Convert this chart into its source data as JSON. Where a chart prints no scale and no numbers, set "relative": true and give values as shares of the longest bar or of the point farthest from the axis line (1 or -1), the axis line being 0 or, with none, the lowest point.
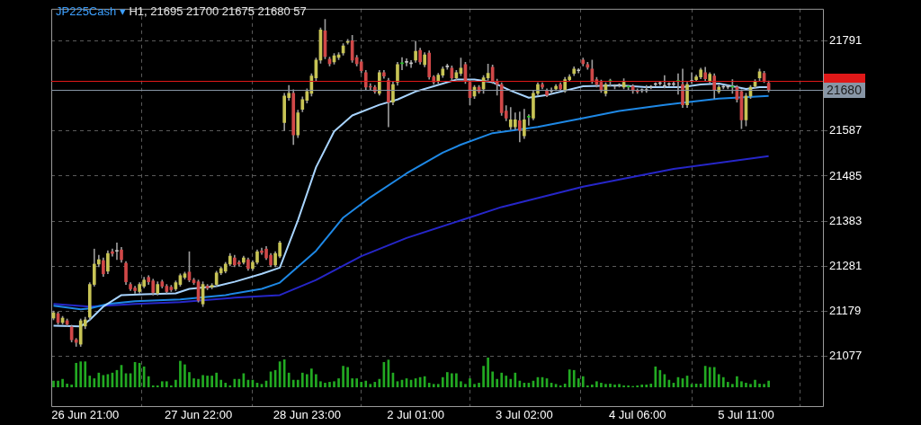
{
  "chart_data": [
    {
      "type": "candlestick",
      "title": "JP225Cash ▾",
      "subtitle": "H1, 21695 21700 21675 21680 57",
      "categories": [
        null,
        null,
        null,
        null,
        null,
        null,
        null,
        "26 Jun 21:00",
        null,
        null,
        null,
        null,
        null,
        null,
        null,
        null,
        null,
        null,
        null,
        null,
        null,
        null,
        null,
        null,
        null,
        null,
        null,
        null,
        null,
        null,
        null,
        null,
        "27 Jun 22:00",
        null,
        null,
        null,
        null,
        null,
        null,
        null,
        null,
        null,
        null,
        null,
        null,
        null,
        null,
        null,
        null,
        null,
        null,
        null,
        null,
        null,
        null,
        null,
        "28 Jun 23:00",
        null,
        null,
        null,
        null,
        null,
        null,
        null,
        null,
        null,
        null,
        null,
        null,
        null,
        null,
        null,
        null,
        null,
        null,
        null,
        null,
        null,
        null,
        null,
        "2 Jul 01:00",
        null,
        null,
        null,
        null,
        null,
        null,
        null,
        null,
        null,
        null,
        null,
        null,
        null,
        null,
        null,
        null,
        null,
        null,
        null,
        null,
        null,
        null,
        null,
        "3 Jul 02:00",
        null,
        null,
        null,
        null,
        null,
        null,
        null,
        null,
        null,
        null,
        null,
        null,
        null,
        null,
        null,
        null,
        null,
        null,
        null,
        null,
        null,
        null,
        null,
        null,
        "4 Jul 06:00",
        null,
        null,
        null,
        null,
        null,
        null,
        null,
        null,
        null,
        null,
        null,
        null,
        null,
        null,
        null,
        null,
        null,
        null,
        null,
        null,
        null,
        null,
        null,
        "5 Jul 11:00",
        null,
        null,
        null,
        null,
        null
      ],
      "ohlc": [
        [
          21164,
          21180,
          21160,
          21176
        ],
        [
          21174,
          21178,
          21150,
          21154
        ],
        [
          21154,
          21168,
          21150,
          21164
        ],
        [
          21158,
          21162,
          21146,
          21150
        ],
        [
          21144,
          21148,
          21110,
          21115
        ],
        [
          21115,
          21118,
          21100,
          21109
        ],
        [
          21105,
          21162,
          21100,
          21158
        ],
        [
          21146,
          21166,
          21140,
          21160
        ],
        [
          21166,
          21244,
          21160,
          21240
        ],
        [
          21240,
          21320,
          21236,
          21286
        ],
        [
          21286,
          21306,
          21280,
          21296
        ],
        [
          21294,
          21300,
          21258,
          21264
        ],
        [
          21270,
          21316,
          21264,
          21310
        ],
        [
          21314,
          21320,
          21304,
          21310
        ],
        [
          21316,
          21334,
          21296,
          21315
        ],
        [
          21318,
          21324,
          21290,
          21296
        ],
        [
          21288,
          21292,
          21240,
          21246
        ],
        [
          21240,
          21244,
          21226,
          21230
        ],
        [
          21232,
          21236,
          21220,
          21226
        ],
        [
          21224,
          21244,
          21220,
          21240
        ],
        [
          21236,
          21256,
          21232,
          21250
        ],
        [
          21256,
          21260,
          21240,
          21246
        ],
        [
          21248,
          21252,
          21216,
          21222
        ],
        [
          21220,
          21246,
          21216,
          21240
        ],
        [
          21246,
          21250,
          21232,
          21236
        ],
        [
          21236,
          21240,
          21220,
          21224
        ],
        [
          21234,
          21238,
          21224,
          21228
        ],
        [
          21230,
          21248,
          21226,
          21244
        ],
        [
          21240,
          21264,
          21236,
          21260
        ],
        [
          21256,
          21268,
          21252,
          21264
        ],
        [
          21268,
          21314,
          21246,
          21250
        ],
        [
          21250,
          21254,
          21240,
          21244
        ],
        [
          21246,
          21250,
          21200,
          21204
        ],
        [
          21196,
          21246,
          21190,
          21240
        ],
        [
          21236,
          21240,
          21228,
          21232
        ],
        [
          21234,
          21242,
          21230,
          21238
        ],
        [
          21240,
          21270,
          21236,
          21266
        ],
        [
          21266,
          21280,
          21262,
          21276
        ],
        [
          21270,
          21290,
          21266,
          21286
        ],
        [
          21286,
          21310,
          21282,
          21304
        ],
        [
          21300,
          21306,
          21280,
          21284
        ],
        [
          21290,
          21294,
          21282,
          21286
        ],
        [
          21290,
          21304,
          21286,
          21300
        ],
        [
          21296,
          21300,
          21272,
          21276
        ],
        [
          21276,
          21294,
          21272,
          21290
        ],
        [
          21290,
          21318,
          21286,
          21314
        ],
        [
          21316,
          21322,
          21308,
          21312
        ],
        [
          21320,
          21326,
          21296,
          21300
        ],
        [
          21306,
          21310,
          21280,
          21284
        ],
        [
          21284,
          21314,
          21280,
          21310
        ],
        [
          21304,
          21338,
          21300,
          21334
        ],
        [
          21606,
          21672,
          21588,
          21666
        ],
        [
          21662,
          21690,
          21656,
          21672
        ],
        [
          21672,
          21680,
          21556,
          21578
        ],
        [
          21578,
          21634,
          21572,
          21628
        ],
        [
          21636,
          21664,
          21630,
          21658
        ],
        [
          21656,
          21682,
          21650,
          21676
        ],
        [
          21672,
          21716,
          21666,
          21711
        ],
        [
          21707,
          21752,
          21700,
          21747
        ],
        [
          21747,
          21820,
          21740,
          21815
        ],
        [
          21813,
          21839,
          21750,
          21755
        ],
        [
          21749,
          21754,
          21734,
          21739
        ],
        [
          21743,
          21762,
          21738,
          21757
        ],
        [
          21753,
          21764,
          21748,
          21759
        ],
        [
          21763,
          21784,
          21758,
          21779
        ],
        [
          21787,
          21794,
          21783,
          21789
        ],
        [
          21791,
          21803,
          21742,
          21747
        ],
        [
          21753,
          21758,
          21734,
          21739
        ],
        [
          21743,
          21748,
          21718,
          21723
        ],
        [
          21719,
          21724,
          21680,
          21686
        ],
        [
          21688,
          21694,
          21680,
          21686
        ],
        [
          21686,
          21690,
          21672,
          21676
        ],
        [
          21672,
          21724,
          21668,
          21719
        ],
        [
          21719,
          21724,
          21706,
          21711
        ],
        [
          21701,
          21706,
          21596,
          21652
        ],
        [
          21652,
          21698,
          21646,
          21692
        ],
        [
          21697,
          21742,
          21690,
          21737
        ],
        [
          21739,
          21753,
          21725,
          21739
        ],
        [
          21743,
          21750,
          21734,
          21742
        ],
        [
          21739,
          21746,
          21730,
          21740
        ],
        [
          21747,
          21790,
          21742,
          21767
        ],
        [
          21769,
          21774,
          21738,
          21743
        ],
        [
          21737,
          21764,
          21732,
          21759
        ],
        [
          21763,
          21768,
          21704,
          21709
        ],
        [
          21709,
          21712,
          21692,
          21697
        ],
        [
          21699,
          21717,
          21694,
          21713
        ],
        [
          21713,
          21732,
          21708,
          21727
        ],
        [
          21733,
          21738,
          21726,
          21732
        ],
        [
          21729,
          21734,
          21702,
          21707
        ],
        [
          21707,
          21724,
          21702,
          21719
        ],
        [
          21717,
          21752,
          21712,
          21729
        ],
        [
          21737,
          21742,
          21694,
          21699
        ],
        [
          21697,
          21702,
          21646,
          21662
        ],
        [
          21666,
          21690,
          21660,
          21686
        ],
        [
          21686,
          21690,
          21672,
          21676
        ],
        [
          21682,
          21712,
          21672,
          21707
        ],
        [
          21707,
          21738,
          21702,
          21717
        ],
        [
          21731,
          21736,
          21694,
          21699
        ],
        [
          21699,
          21704,
          21668,
          21692
        ],
        [
          21692,
          21696,
          21622,
          21628
        ],
        [
          21632,
          21644,
          21610,
          21616
        ],
        [
          21596,
          21640,
          21590,
          21612
        ],
        [
          21596,
          21628,
          21590,
          21612
        ],
        [
          21610,
          21630,
          21562,
          21588
        ],
        [
          21576,
          21636,
          21570,
          21612
        ],
        [
          21618,
          21624,
          21600,
          21618
        ],
        [
          21616,
          21678,
          21612,
          21672
        ],
        [
          21672,
          21696,
          21668,
          21692
        ],
        [
          21692,
          21696,
          21682,
          21686
        ],
        [
          21678,
          21682,
          21664,
          21668
        ],
        [
          21678,
          21684,
          21672,
          21677
        ],
        [
          21682,
          21692,
          21678,
          21688
        ],
        [
          21692,
          21696,
          21678,
          21682
        ],
        [
          21678,
          21708,
          21674,
          21703
        ],
        [
          21703,
          21714,
          21700,
          21709
        ],
        [
          21717,
          21732,
          21712,
          21727
        ],
        [
          21723,
          21728,
          21718,
          21724
        ],
        [
          21747,
          21752,
          21734,
          21739
        ],
        [
          21737,
          21742,
          21726,
          21731
        ],
        [
          21727,
          21747,
          21694,
          21699
        ],
        [
          21703,
          21708,
          21686,
          21692
        ],
        [
          21697,
          21702,
          21674,
          21678
        ],
        [
          21672,
          21696,
          21666,
          21692
        ],
        [
          21699,
          21704,
          21688,
          21699
        ],
        [
          21688,
          21692,
          21682,
          21689
        ],
        [
          21690,
          21694,
          21686,
          21691
        ],
        [
          21686,
          21705,
          21682,
          21697
        ],
        [
          21686,
          21690,
          21680,
          21686
        ],
        [
          21688,
          21692,
          21672,
          21678
        ],
        [
          21678,
          21682,
          21672,
          21676
        ],
        [
          21678,
          21682,
          21674,
          21679
        ],
        [
          21678,
          21690,
          21674,
          21679
        ],
        [
          21686,
          21690,
          21682,
          21687
        ],
        [
          21692,
          21696,
          21688,
          21693
        ],
        [
          21694,
          21698,
          21690,
          21695
        ],
        [
          21688,
          21712,
          21684,
          21689
        ],
        [
          21692,
          21696,
          21688,
          21693
        ],
        [
          21692,
          21698,
          21688,
          21693
        ],
        [
          21699,
          21716,
          21670,
          21699
        ],
        [
          21692,
          21727,
          21640,
          21646
        ],
        [
          21646,
          21697,
          21640,
          21692
        ],
        [
          21699,
          21719,
          21694,
          21700
        ],
        [
          21703,
          21713,
          21700,
          21709
        ],
        [
          21709,
          21729,
          21705,
          21725
        ],
        [
          21719,
          21731,
          21700,
          21705
        ],
        [
          21699,
          21719,
          21695,
          21715
        ],
        [
          21711,
          21716,
          21660,
          21680
        ],
        [
          21676,
          21690,
          21672,
          21686
        ],
        [
          21686,
          21690,
          21682,
          21687
        ],
        [
          21686,
          21690,
          21682,
          21687
        ],
        [
          21686,
          21703,
          21672,
          21686
        ],
        [
          21686,
          21690,
          21652,
          21658
        ],
        [
          21676,
          21680,
          21592,
          21612
        ],
        [
          21612,
          21672,
          21598,
          21666
        ],
        [
          21666,
          21690,
          21660,
          21686
        ],
        [
          21688,
          21703,
          21684,
          21699
        ],
        [
          21707,
          21727,
          21700,
          21721
        ],
        [
          21717,
          21722,
          21696,
          21701
        ],
        [
          21695,
          21700,
          21675,
          21680
        ]
      ],
      "colors": [
        "#c8c455",
        "#d04848",
        "#c8c455",
        "#d04848",
        "#d04848",
        "#d04848",
        "#c8c455",
        "#c8c455",
        "#c8c455",
        "#c8c455",
        "#c8c455",
        "#d04848",
        "#c8c455",
        "#d04848",
        "#c8c8c8",
        "#d04848",
        "#d04848",
        "#d04848",
        "#d04848",
        "#c8c455",
        "#c8c455",
        "#d04848",
        "#d04848",
        "#c8c455",
        "#d04848",
        "#d04848",
        "#d04848",
        "#c8c455",
        "#c8c455",
        "#c8c455",
        "#d04848",
        "#d04848",
        "#d04848",
        "#c8c455",
        "#d04848",
        "#c8c455",
        "#c8c455",
        "#c8c455",
        "#c8c455",
        "#c8c455",
        "#d04848",
        "#d04848",
        "#c8c455",
        "#d04848",
        "#c8c455",
        "#c8c455",
        "#d04848",
        "#d04848",
        "#d04848",
        "#c8c455",
        "#c8c455",
        "#c8c455",
        "#c8c455",
        "#d04848",
        "#c8c455",
        "#c8c455",
        "#c8c455",
        "#c8c455",
        "#c8c455",
        "#c8c455",
        "#d04848",
        "#d04848",
        "#c8c455",
        "#c8c455",
        "#c8c455",
        "#c8c455",
        "#d04848",
        "#d04848",
        "#d04848",
        "#d04848",
        "#d04848",
        "#d04848",
        "#c8c455",
        "#d04848",
        "#d04848",
        "#c8c455",
        "#c8c455",
        "#1fc41f",
        "#c8c8c8",
        "#c8c8c8",
        "#c8c455",
        "#d04848",
        "#c8c455",
        "#d04848",
        "#d04848",
        "#c8c455",
        "#c8c455",
        "#c8c8c8",
        "#d04848",
        "#c8c455",
        "#c8c455",
        "#d04848",
        "#d04848",
        "#c8c455",
        "#d04848",
        "#c8c455",
        "#c8c455",
        "#d04848",
        "#d04848",
        "#d04848",
        "#d04848",
        "#c8c455",
        "#c8c455",
        "#d04848",
        "#c8c455",
        "#1fc41f",
        "#c8c455",
        "#c8c455",
        "#d04848",
        "#d04848",
        "#c8c8c8",
        "#c8c455",
        "#d04848",
        "#c8c455",
        "#c8c455",
        "#c8c455",
        "#c8c8c8",
        "#d04848",
        "#d04848",
        "#d04848",
        "#d04848",
        "#d04848",
        "#c8c455",
        "#1fc41f",
        "#c8c8c8",
        "#c8c8c8",
        "#c8c455",
        "#1fc41f",
        "#d04848",
        "#d04848",
        "#c8c8c8",
        "#c8c8c8",
        "#c8c8c8",
        "#c8c8c8",
        "#c8c8c8",
        "#c8c8c8",
        "#c8c8c8",
        "#c8c8c8",
        "#1fc41f",
        "#d04848",
        "#c8c455",
        "#c8c8c8",
        "#c8c455",
        "#c8c455",
        "#d04848",
        "#c8c455",
        "#d04848",
        "#c8c455",
        "#c8c8c8",
        "#c8c8c8",
        "#1fc41f",
        "#d04848",
        "#d04848",
        "#c8c455",
        "#c8c455",
        "#c8c455",
        "#c8c455",
        "#d04848",
        "#d04848"
      ],
      "series": [
        {
          "type": "line",
          "color": "#a8d4ff",
          "values": [
            21147,
            null,
            null,
            null,
            null,
            null,
            21145,
            null,
            21160,
            null,
            null,
            21190,
            null,
            null,
            null,
            21216,
            null,
            null,
            null,
            null,
            21218,
            null,
            null,
            null,
            null,
            null,
            null,
            21220,
            null,
            null,
            21230,
            null,
            null,
            null,
            null,
            null,
            21236,
            null,
            null,
            null,
            21246,
            null,
            null,
            null,
            null,
            null,
            21264,
            null,
            null,
            null,
            21278,
            null,
            null,
            null,
            21385,
            null,
            null,
            null,
            21505,
            null,
            null,
            null,
            21586,
            null,
            null,
            null,
            21622,
            null,
            null,
            null,
            null,
            null,
            21646,
            null,
            null,
            null,
            21658,
            null,
            null,
            null,
            21676,
            null,
            null,
            null,
            21688,
            null,
            null,
            null,
            null,
            21703,
            null,
            null,
            null,
            21703,
            null,
            null,
            null,
            21697,
            null,
            null,
            null,
            21678,
            null,
            null,
            null,
            21662,
            null,
            null,
            null,
            21668,
            null,
            null,
            null,
            21678,
            null,
            null,
            null,
            21688,
            null,
            null,
            null,
            null,
            null,
            null,
            null,
            21690,
            null,
            null,
            null,
            null,
            null,
            21686,
            null,
            null,
            null,
            null,
            null,
            null,
            null,
            21686,
            null,
            null,
            null,
            21692,
            null,
            null,
            null,
            21694,
            null,
            null,
            null,
            21686,
            null,
            21682,
            null,
            null,
            21686,
            null,
            21686
          ]
        },
        {
          "type": "line",
          "color": "#1e88e5",
          "values": [
            21192,
            null,
            null,
            null,
            null,
            null,
            21184,
            null,
            21186,
            null,
            null,
            null,
            21196,
            null,
            null,
            null,
            null,
            null,
            21202,
            null,
            null,
            null,
            null,
            null,
            null,
            null,
            null,
            null,
            21206,
            null,
            null,
            null,
            null,
            null,
            null,
            null,
            null,
            null,
            21216,
            null,
            null,
            null,
            null,
            null,
            null,
            null,
            21230,
            null,
            null,
            null,
            21244,
            null,
            null,
            null,
            null,
            null,
            null,
            null,
            21316,
            null,
            null,
            null,
            null,
            null,
            21391,
            null,
            null,
            null,
            null,
            null,
            21437,
            null,
            null,
            null,
            null,
            null,
            null,
            null,
            21491,
            null,
            null,
            null,
            null,
            null,
            null,
            null,
            21538,
            null,
            null,
            null,
            21556,
            null,
            null,
            null,
            null,
            null,
            null,
            21582,
            null,
            null,
            null,
            null,
            null,
            null,
            null,
            null,
            null,
            21596,
            null,
            null,
            null,
            null,
            null,
            null,
            null,
            null,
            null,
            21616,
            null,
            null,
            null,
            null,
            null,
            null,
            null,
            21632,
            null,
            null,
            null,
            null,
            null,
            null,
            null,
            null,
            null,
            21646,
            null,
            null,
            null,
            null,
            null,
            null,
            null,
            null,
            null,
            null,
            null,
            21660,
            null,
            null,
            null,
            null,
            null,
            null,
            null,
            null,
            null,
            null,
            21666
          ]
        },
        {
          "type": "line",
          "color": "#2626c8",
          "values": [
            21196,
            null,
            null,
            null,
            null,
            null,
            null,
            null,
            21190,
            null,
            null,
            null,
            null,
            null,
            null,
            null,
            null,
            null,
            21196,
            null,
            null,
            null,
            null,
            null,
            null,
            null,
            null,
            null,
            21200,
            null,
            null,
            null,
            null,
            null,
            null,
            null,
            null,
            null,
            null,
            null,
            21210,
            null,
            null,
            null,
            null,
            null,
            null,
            null,
            null,
            null,
            21216,
            null,
            null,
            null,
            null,
            null,
            null,
            null,
            21250,
            null,
            null,
            null,
            null,
            null,
            null,
            null,
            null,
            null,
            21304,
            null,
            null,
            null,
            null,
            null,
            null,
            null,
            null,
            null,
            21345,
            null,
            null,
            null,
            null,
            null,
            null,
            null,
            null,
            null,
            null,
            null,
            21385,
            null,
            null,
            null,
            null,
            null,
            null,
            null,
            null,
            21415,
            null,
            null,
            null,
            null,
            null,
            null,
            null,
            null,
            null,
            null,
            null,
            null,
            null,
            null,
            null,
            null,
            null,
            21461,
            null,
            null,
            null,
            null,
            null,
            null,
            null,
            null,
            null,
            null,
            null,
            null,
            null,
            null,
            null,
            null,
            null,
            null,
            null,
            21501,
            null,
            null,
            null,
            null,
            null,
            null,
            null,
            null,
            null,
            null,
            null,
            null,
            null,
            null,
            null,
            null,
            null,
            null,
            null,
            null,
            21530
          ]
        }
      ],
      "ylim": [
        20965,
        21863
      ],
      "yticks": [
        21077,
        21179,
        21281,
        21383,
        21485,
        21587,
        21791
      ],
      "ref_lines": [
        {
          "axis": "y",
          "value": 21700,
          "label": null,
          "color": "#e01818"
        },
        {
          "axis": "y",
          "value": 21680,
          "label": "21680",
          "color": "#8896a6"
        }
      ],
      "grid": true
    },
    {
      "type": "bar",
      "relative": true,
      "color": "#22aa22",
      "categories": [
        null,
        null,
        null,
        null,
        null,
        null,
        null,
        null,
        null,
        null,
        null,
        null,
        null,
        null,
        null,
        null,
        null,
        null,
        null,
        null,
        null,
        null,
        null,
        null,
        null,
        null,
        null,
        null,
        null,
        null,
        null,
        null,
        null,
        null,
        null,
        null,
        null,
        null,
        null,
        null,
        null,
        null,
        null,
        null,
        null,
        null,
        null,
        null,
        null,
        null,
        null,
        null,
        null,
        null,
        null,
        null,
        null,
        null,
        null,
        null,
        null,
        null,
        null,
        null,
        null,
        null,
        null,
        null,
        null,
        null,
        null,
        null,
        null,
        null,
        null,
        null,
        null,
        null,
        null,
        null,
        null,
        null,
        null,
        null,
        null,
        null,
        null,
        null,
        null,
        null,
        null,
        null,
        null,
        null,
        null,
        null,
        null,
        null,
        null,
        null,
        null,
        null,
        null,
        null,
        null,
        null,
        null,
        null,
        null,
        null,
        null,
        null,
        null,
        null,
        null,
        null,
        null,
        null,
        null,
        null,
        null,
        null,
        null,
        null,
        null,
        null,
        null,
        null,
        null,
        null,
        null,
        null,
        null,
        null,
        null,
        null,
        null,
        null,
        null,
        null,
        null,
        null,
        null,
        null,
        null,
        null,
        null,
        null,
        null,
        null,
        null,
        null,
        null,
        null,
        null,
        null,
        null,
        null,
        null
      ],
      "values": [
        0.21,
        0.21,
        0.27,
        0.11,
        0.08,
        0.81,
        0.86,
        0.86,
        0.38,
        0.29,
        0.48,
        0.4,
        0.43,
        0.48,
        0.57,
        0.74,
        0.46,
        0.46,
        0.84,
        0.81,
        0.69,
        0.36,
        0.05,
        0.05,
        0.19,
        0.19,
        0.05,
        0.24,
        0.88,
        0.76,
        0.5,
        0.29,
        0.27,
        0.4,
        0.38,
        0.38,
        0.48,
        0.24,
        0.14,
        0.05,
        0.27,
        0.27,
        0.46,
        0.24,
        0.24,
        0.14,
        0.1,
        0.21,
        0.52,
        0.57,
        0.86,
        0.93,
        0.48,
        0.24,
        0.24,
        0.48,
        0.43,
        0.62,
        0.43,
        0.19,
        0.14,
        0.17,
        0.19,
        0.29,
        0.71,
        0.67,
        0.29,
        0.29,
        0.17,
        0.21,
        0.1,
        0.17,
        0.27,
        0.84,
        0.92,
        0.48,
        0.19,
        0.24,
        0.29,
        0.24,
        0.29,
        0.33,
        0.36,
        0.14,
        0.1,
        0.1,
        0.33,
        0.5,
        0.46,
        0.46,
        0.19,
        0.1,
        0.29,
        0.1,
        0.14,
        0.71,
        1,
        0.52,
        0.27,
        0.48,
        0.38,
        0.27,
        0.48,
        0.21,
        0.14,
        0.14,
        0.21,
        0.33,
        0.33,
        0.29,
        0.14,
        0.1,
        0.05,
        0.11,
        0.59,
        0.57,
        0.29,
        0.36,
        0.05,
        0.08,
        0.19,
        0.14,
        0.1,
        0.11,
        0.08,
        0.1,
        0.05,
        0.05,
        0.03,
        0.05,
        0.08,
        0.08,
        0.11,
        0.69,
        0.57,
        0.43,
        0.24,
        0.14,
        0.33,
        0.29,
        0.38,
        0.1,
        0.11,
        0.11,
        0.71,
        0.67,
        0.67,
        0.43,
        0.33,
        0.17,
        0.1,
        0.36,
        0.19,
        0.14,
        0.1,
        0.24,
        0.11,
        0.1,
        0.21
      ],
      "legend": false
    }
  ]
}
